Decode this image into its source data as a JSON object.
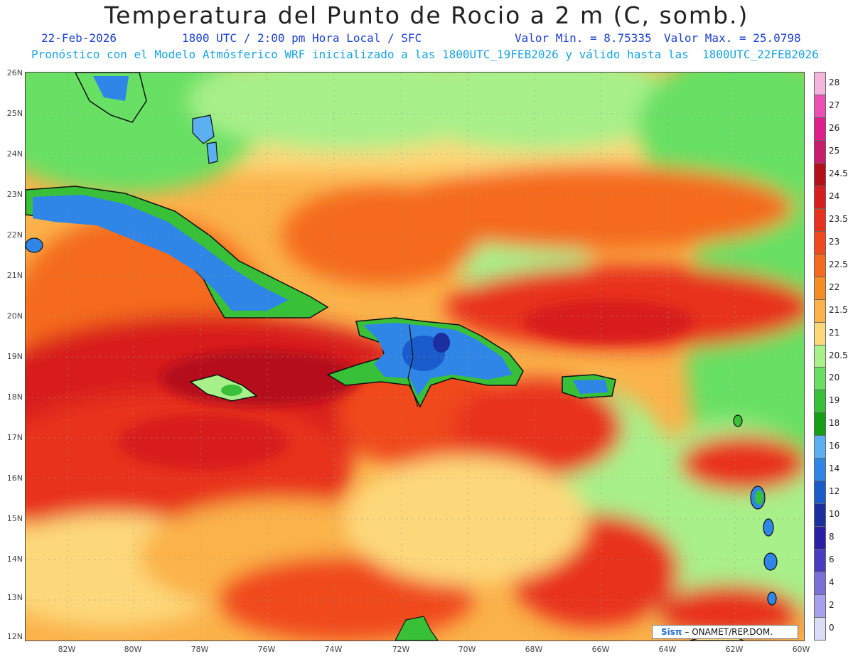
{
  "header": {
    "title": "Temperatura del Punto de Rocio a 2 m (C, somb.)",
    "date": "22-Feb-2026",
    "time": "1800 UTC / 2:00 pm Hora Local / SFC",
    "min_value": "Valor Min. = 8.75335",
    "max_value": "Valor Max. = 25.0798",
    "forecast_note": "Pronóstico con el Modelo Atmósferico WRF inicializado a las 1800UTC_19FEB2026 y válido hasta las  1800UTC_22FEB2026"
  },
  "map": {
    "lat_labels": [
      "26N",
      "25N",
      "24N",
      "23N",
      "22N",
      "21N",
      "20N",
      "19N",
      "18N",
      "17N",
      "16N",
      "15N",
      "14N",
      "13N",
      "12N"
    ],
    "lon_labels": [
      "82W",
      "80W",
      "78W",
      "76W",
      "74W",
      "72W",
      "70W",
      "68W",
      "66W",
      "64W",
      "62W",
      "60W"
    ],
    "land_regions": [
      "Florida",
      "Bahamas",
      "Cuba",
      "Jamaica",
      "Hispaniola",
      "Puerto Rico",
      "Lesser Antilles",
      "Venezuela coast"
    ]
  },
  "colorbar": {
    "labels": [
      "28",
      "27",
      "26",
      "25",
      "24.5",
      "24",
      "23.5",
      "23",
      "22.5",
      "22",
      "21.5",
      "21",
      "20.5",
      "20",
      "19",
      "18",
      "16",
      "14",
      "12",
      "10",
      "8",
      "6",
      "4",
      "2",
      "0"
    ],
    "colors": [
      "#f4b6dc",
      "#ee4fb4",
      "#e01e8c",
      "#c81c6c",
      "#b50f1a",
      "#d81e1e",
      "#e8321e",
      "#f04a1e",
      "#f56a1e",
      "#f88c24",
      "#fbb24a",
      "#fdd87a",
      "#a8f08a",
      "#68e064",
      "#38c038",
      "#14a014",
      "#5ab0f0",
      "#2f86e6",
      "#1a5ccc",
      "#1c2ea0",
      "#2a20a8",
      "#4a3cc0",
      "#7a70d8",
      "#a8a0ec",
      "#dcdcf6"
    ]
  },
  "credit": {
    "logo_text": "Sisπ",
    "org": "– ONAMET/REP.DOM."
  }
}
